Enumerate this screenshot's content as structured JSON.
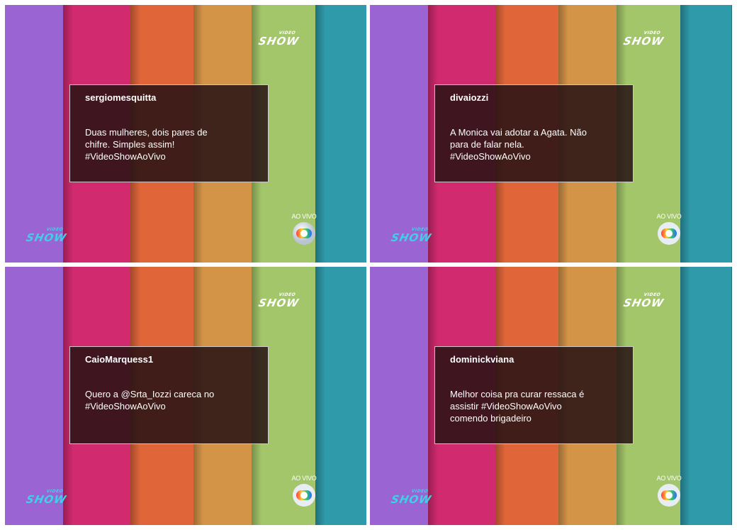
{
  "panels": [
    {
      "username": "sergiomesquitta",
      "message_lines": [
        "Duas mulheres, dois pares de",
        "chifre. Simples assim!",
        "#VideoShowAoVivo"
      ]
    },
    {
      "username": "divaiozzi",
      "message_lines": [
        "A Monica vai adotar a Agata. Não",
        "para de falar nela.",
        "#VideoShowAoVivo"
      ]
    },
    {
      "username": "CaioMarquess1",
      "message_lines": [
        "Quero a @Srta_Iozzi careca no",
        "#VideoShowAoVivo"
      ]
    },
    {
      "username": "dominickviana",
      "message_lines": [
        "Melhor coisa pra curar ressaca é",
        "assistir #VideoShowAoVivo",
        "comendo brigadeiro"
      ]
    }
  ],
  "logo": {
    "small": "VIDEO",
    "main": "SHOW"
  },
  "live_badge": "AO VIVO",
  "colors": {
    "stripes": [
      "#9a65d3",
      "#d12a6e",
      "#e0663a",
      "#d49448",
      "#a3c66a",
      "#2f9aaa"
    ],
    "card_background": "#261214",
    "logo_bottom": "#3fd0e8"
  }
}
